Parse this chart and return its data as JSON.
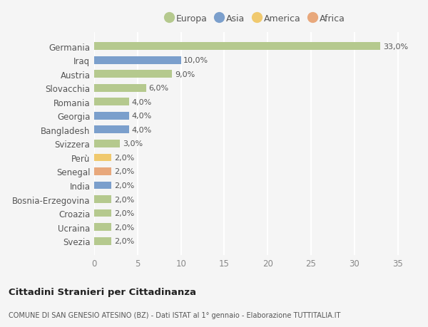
{
  "countries": [
    "Germania",
    "Iraq",
    "Austria",
    "Slovacchia",
    "Romania",
    "Georgia",
    "Bangladesh",
    "Svizzera",
    "Perù",
    "Senegal",
    "India",
    "Bosnia-Erzegovina",
    "Croazia",
    "Ucraina",
    "Svezia"
  ],
  "values": [
    33.0,
    10.0,
    9.0,
    6.0,
    4.0,
    4.0,
    4.0,
    3.0,
    2.0,
    2.0,
    2.0,
    2.0,
    2.0,
    2.0,
    2.0
  ],
  "continents": [
    "Europa",
    "Asia",
    "Europa",
    "Europa",
    "Europa",
    "Asia",
    "Asia",
    "Europa",
    "America",
    "Africa",
    "Asia",
    "Europa",
    "Europa",
    "Europa",
    "Europa"
  ],
  "colors": {
    "Europa": "#b5c98e",
    "Asia": "#7b9fcc",
    "America": "#f0c96e",
    "Africa": "#e8a87c"
  },
  "legend_order": [
    "Europa",
    "Asia",
    "America",
    "Africa"
  ],
  "title": "Cittadini Stranieri per Cittadinanza",
  "subtitle": "COMUNE DI SAN GENESIO ATESINO (BZ) - Dati ISTAT al 1° gennaio - Elaborazione TUTTITALIA.IT",
  "xlim": [
    0,
    37
  ],
  "xticks": [
    0,
    5,
    10,
    15,
    20,
    25,
    30,
    35
  ],
  "background_color": "#f5f5f5",
  "grid_color": "#ffffff",
  "bar_height": 0.55
}
